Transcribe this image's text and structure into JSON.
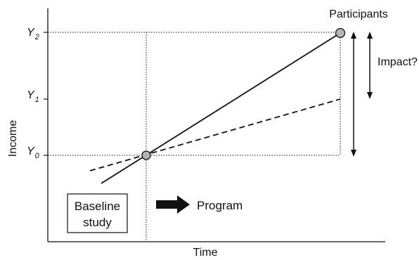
{
  "axes": {
    "x_label": "Time",
    "y_label": "Income"
  },
  "y_ticks": [
    {
      "main": "Y",
      "sub": "2"
    },
    {
      "main": "Y",
      "sub": "1"
    },
    {
      "main": "Y",
      "sub": "0"
    }
  ],
  "labels": {
    "participants": "Participants",
    "impact": "Impact?",
    "baseline_line1": "Baseline",
    "baseline_line2": "study",
    "program": "Program"
  },
  "colors": {
    "ink": "#111111",
    "point_fill": "#b4b4b4",
    "arrow_fill": "#111111"
  }
}
